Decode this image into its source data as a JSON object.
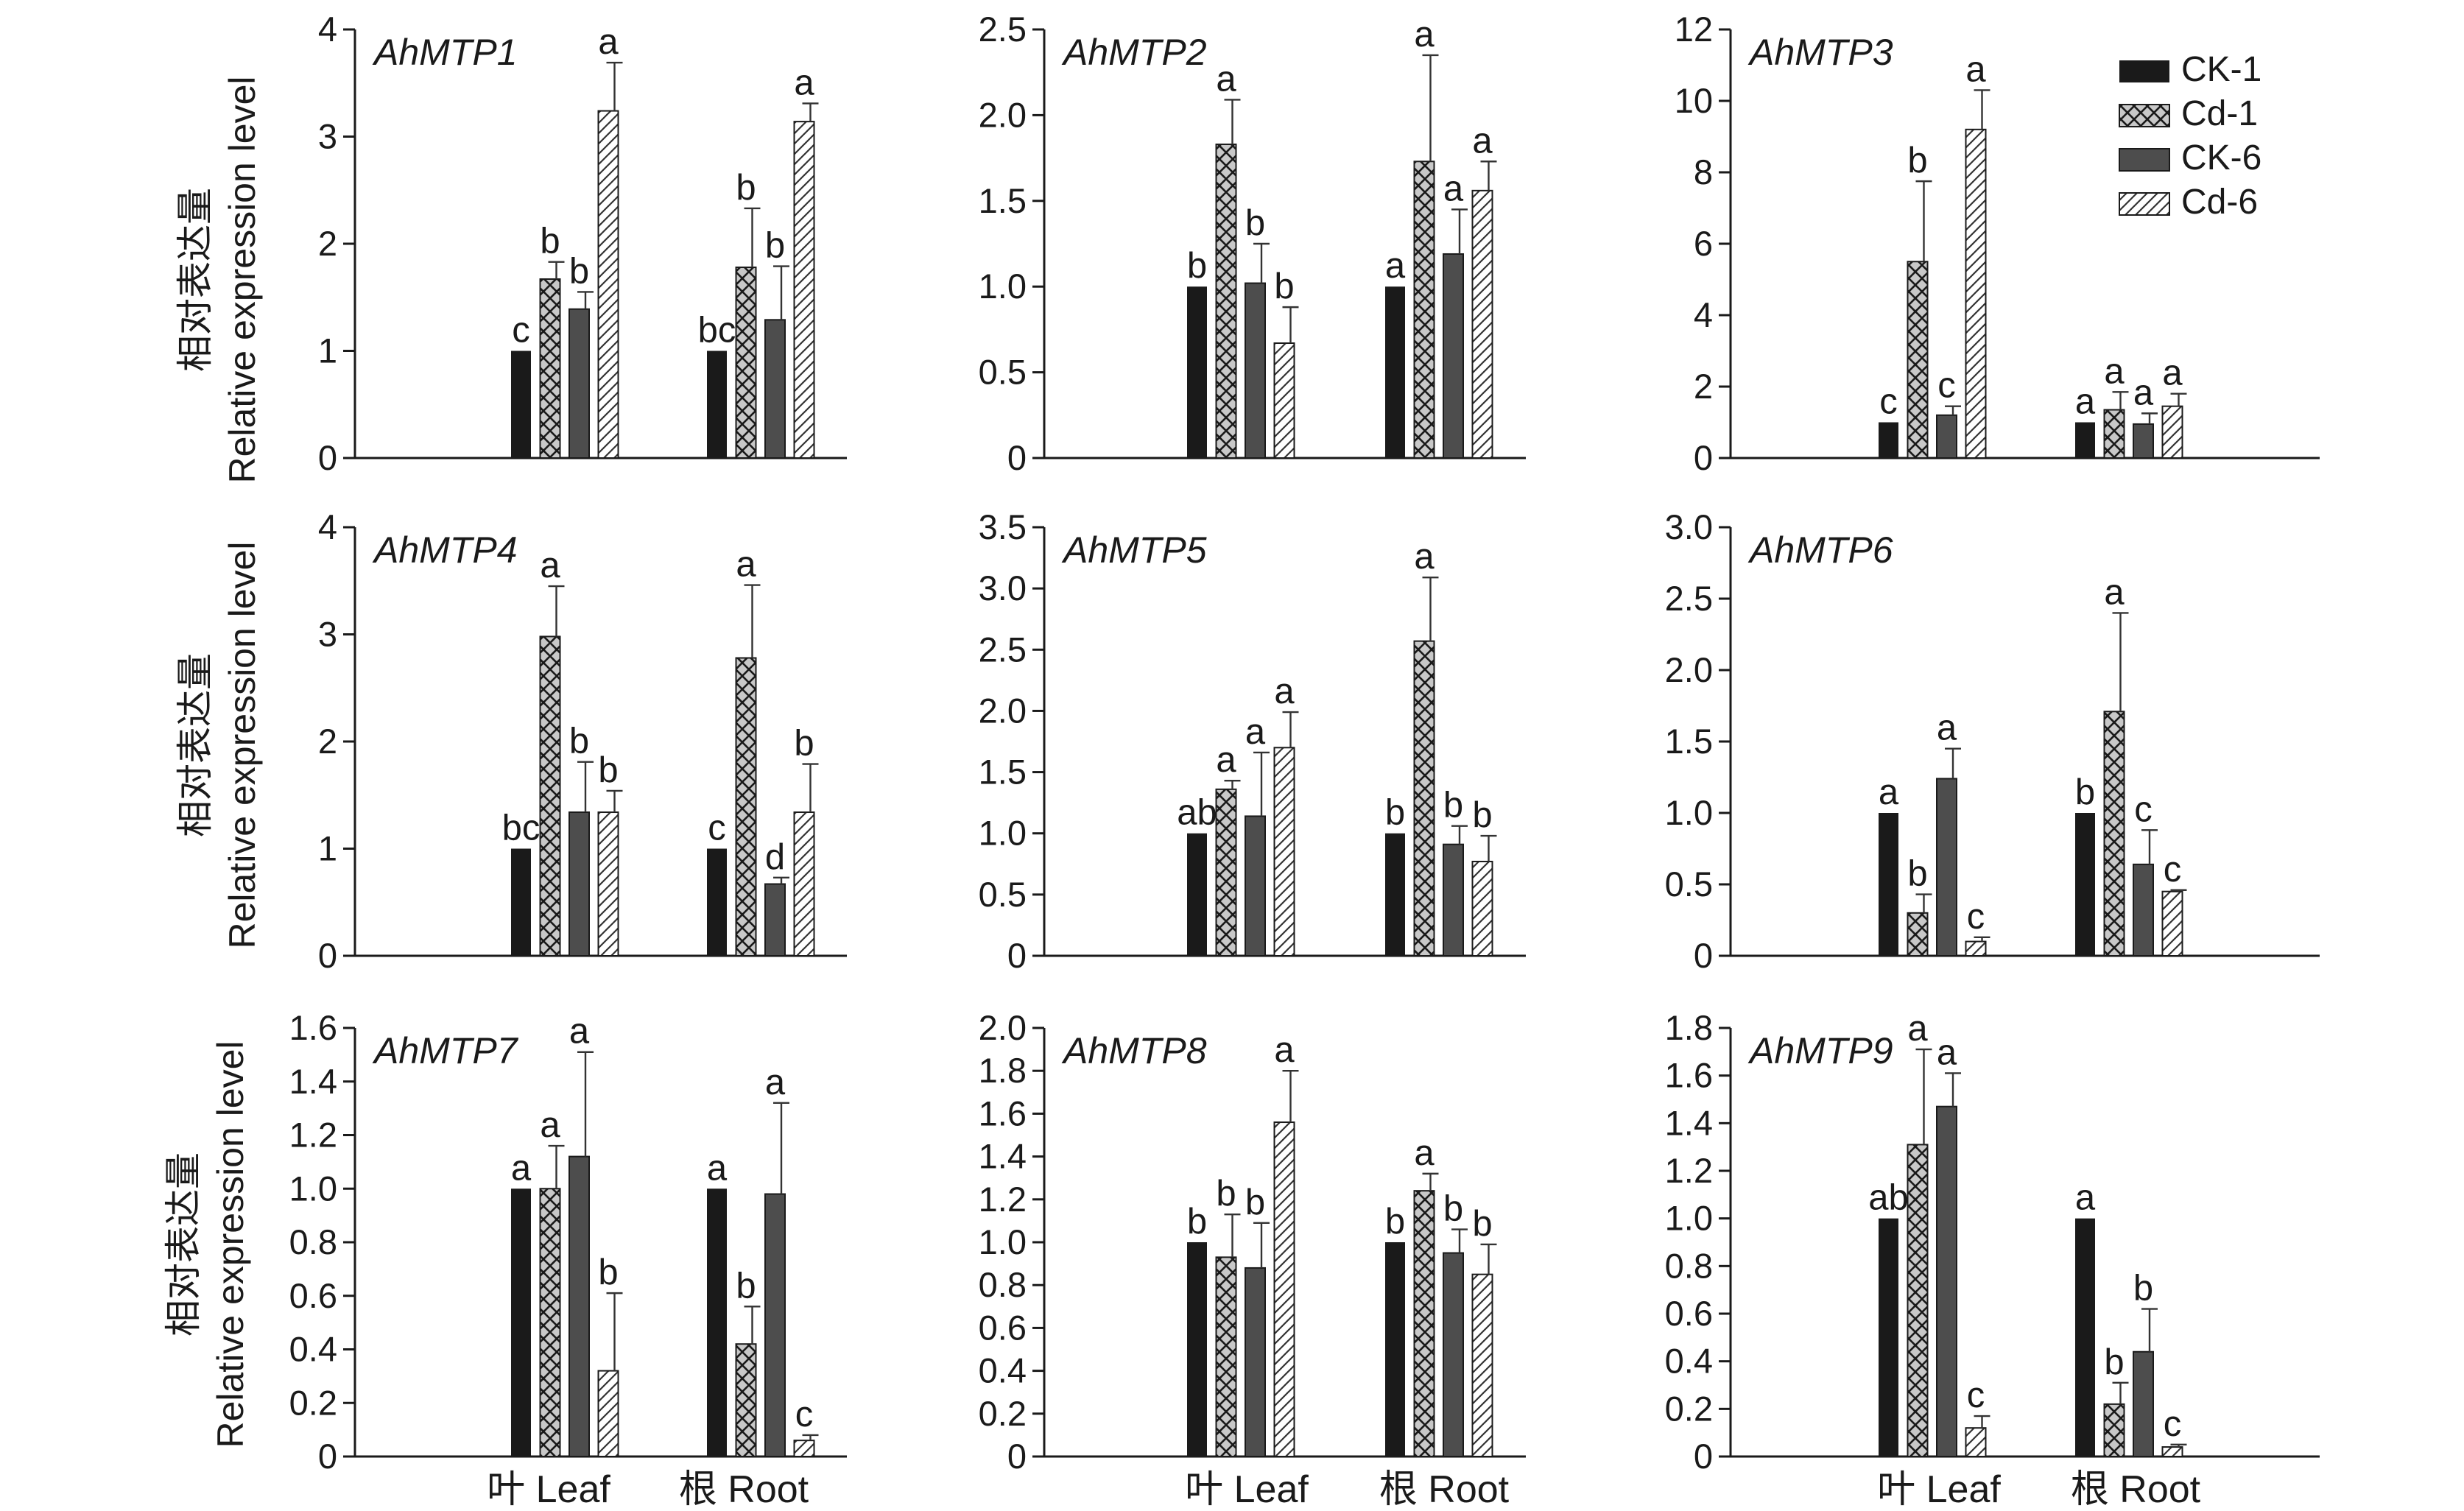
{
  "legend": [
    "CK-1",
    "Cd-1",
    "CK-6",
    "Cd-6"
  ],
  "ylabel_cn": "相对表达量",
  "ylabel_en": "Relative expression level",
  "xcategories": [
    "叶 Leaf",
    "根 Root"
  ],
  "chart_data": [
    {
      "type": "bar",
      "title": "AhMTP1",
      "categories": [
        "叶 Leaf",
        "根 Root"
      ],
      "ylim": [
        0,
        4
      ],
      "yticks": [
        "0",
        "1",
        "2",
        "3",
        "4"
      ],
      "series": [
        {
          "name": "CK-1",
          "values": [
            1.0,
            1.0
          ],
          "errors": [
            0,
            0
          ],
          "letters": [
            "c",
            "bc"
          ]
        },
        {
          "name": "Cd-1",
          "values": [
            1.67,
            1.78
          ],
          "errors": [
            0.16,
            0.55
          ],
          "letters": [
            "b",
            "b"
          ]
        },
        {
          "name": "CK-6",
          "values": [
            1.39,
            1.29
          ],
          "errors": [
            0.16,
            0.5
          ],
          "letters": [
            "b",
            "b"
          ]
        },
        {
          "name": "Cd-6",
          "values": [
            3.24,
            3.14
          ],
          "errors": [
            0.45,
            0.17
          ],
          "letters": [
            "a",
            "a"
          ]
        }
      ]
    },
    {
      "type": "bar",
      "title": "AhMTP2",
      "categories": [
        "叶 Leaf",
        "根 Root"
      ],
      "ylim": [
        0,
        2.5
      ],
      "yticks": [
        "0",
        "0.5",
        "1.0",
        "1.5",
        "2.0",
        "2.5"
      ],
      "series": [
        {
          "name": "CK-1",
          "values": [
            1.0,
            1.0
          ],
          "errors": [
            0,
            0
          ],
          "letters": [
            "b",
            "a"
          ]
        },
        {
          "name": "Cd-1",
          "values": [
            1.83,
            1.73
          ],
          "errors": [
            0.26,
            0.62
          ],
          "letters": [
            "a",
            "a"
          ]
        },
        {
          "name": "CK-6",
          "values": [
            1.02,
            1.19
          ],
          "errors": [
            0.23,
            0.26
          ],
          "letters": [
            "b",
            "a"
          ]
        },
        {
          "name": "Cd-6",
          "values": [
            0.67,
            1.56
          ],
          "errors": [
            0.21,
            0.17
          ],
          "letters": [
            "b",
            "a"
          ]
        }
      ]
    },
    {
      "type": "bar",
      "title": "AhMTP3",
      "categories": [
        "叶 Leaf",
        "根 Root"
      ],
      "ylim": [
        0,
        12
      ],
      "yticks": [
        "0",
        "2",
        "4",
        "6",
        "8",
        "10",
        "12"
      ],
      "series": [
        {
          "name": "CK-1",
          "values": [
            1.0,
            1.0
          ],
          "errors": [
            0,
            0
          ],
          "letters": [
            "c",
            "a"
          ]
        },
        {
          "name": "Cd-1",
          "values": [
            5.5,
            1.35
          ],
          "errors": [
            2.25,
            0.5
          ],
          "letters": [
            "b",
            "a"
          ]
        },
        {
          "name": "CK-6",
          "values": [
            1.2,
            0.95
          ],
          "errors": [
            0.25,
            0.3
          ],
          "letters": [
            "c",
            "a"
          ]
        },
        {
          "name": "Cd-6",
          "values": [
            9.2,
            1.45
          ],
          "errors": [
            1.1,
            0.35
          ],
          "letters": [
            "a",
            "a"
          ]
        }
      ]
    },
    {
      "type": "bar",
      "title": "AhMTP4",
      "categories": [
        "叶 Leaf",
        "根 Root"
      ],
      "ylim": [
        0,
        4
      ],
      "yticks": [
        "0",
        "1",
        "2",
        "3",
        "4"
      ],
      "series": [
        {
          "name": "CK-1",
          "values": [
            1.0,
            1.0
          ],
          "errors": [
            0,
            0
          ],
          "letters": [
            "bc",
            "c"
          ]
        },
        {
          "name": "Cd-1",
          "values": [
            2.98,
            2.78
          ],
          "errors": [
            0.47,
            0.68
          ],
          "letters": [
            "a",
            "a"
          ]
        },
        {
          "name": "CK-6",
          "values": [
            1.34,
            0.67
          ],
          "errors": [
            0.47,
            0.06
          ],
          "letters": [
            "b",
            "d"
          ]
        },
        {
          "name": "Cd-6",
          "values": [
            1.34,
            1.34
          ],
          "errors": [
            0.2,
            0.45
          ],
          "letters": [
            "b",
            "b"
          ]
        }
      ]
    },
    {
      "type": "bar",
      "title": "AhMTP5",
      "categories": [
        "叶 Leaf",
        "根 Root"
      ],
      "ylim": [
        0,
        3.5
      ],
      "yticks": [
        "0",
        "0.5",
        "1.0",
        "1.5",
        "2.0",
        "2.5",
        "3.0",
        "3.5"
      ],
      "series": [
        {
          "name": "CK-1",
          "values": [
            1.0,
            1.0
          ],
          "errors": [
            0,
            0
          ],
          "letters": [
            "ab",
            "b"
          ]
        },
        {
          "name": "Cd-1",
          "values": [
            1.36,
            2.57
          ],
          "errors": [
            0.07,
            0.52
          ],
          "letters": [
            "a",
            "a"
          ]
        },
        {
          "name": "CK-6",
          "values": [
            1.14,
            0.91
          ],
          "errors": [
            0.52,
            0.15
          ],
          "letters": [
            "a",
            "b"
          ]
        },
        {
          "name": "Cd-6",
          "values": [
            1.7,
            0.77
          ],
          "errors": [
            0.29,
            0.21
          ],
          "letters": [
            "a",
            "b"
          ]
        }
      ]
    },
    {
      "type": "bar",
      "title": "AhMTP6",
      "categories": [
        "叶 Leaf",
        "根 Root"
      ],
      "ylim": [
        0,
        3.0
      ],
      "yticks": [
        "0",
        "0.5",
        "1.0",
        "1.5",
        "2.0",
        "2.5",
        "3.0"
      ],
      "series": [
        {
          "name": "CK-1",
          "values": [
            1.0,
            1.0
          ],
          "errors": [
            0,
            0
          ],
          "letters": [
            "a",
            "b"
          ]
        },
        {
          "name": "Cd-1",
          "values": [
            0.3,
            1.71
          ],
          "errors": [
            0.13,
            0.69
          ],
          "letters": [
            "b",
            "a"
          ]
        },
        {
          "name": "CK-6",
          "values": [
            1.24,
            0.64
          ],
          "errors": [
            0.21,
            0.24
          ],
          "letters": [
            "a",
            "c"
          ]
        },
        {
          "name": "Cd-6",
          "values": [
            0.1,
            0.45
          ],
          "errors": [
            0.03,
            0.01
          ],
          "letters": [
            "c",
            "c"
          ]
        }
      ]
    },
    {
      "type": "bar",
      "title": "AhMTP7",
      "categories": [
        "叶 Leaf",
        "根 Root"
      ],
      "ylim": [
        0,
        1.6
      ],
      "yticks": [
        "0",
        "0.2",
        "0.4",
        "0.6",
        "0.8",
        "1.0",
        "1.2",
        "1.4",
        "1.6"
      ],
      "series": [
        {
          "name": "CK-1",
          "values": [
            1.0,
            1.0
          ],
          "errors": [
            0,
            0
          ],
          "letters": [
            "a",
            "a"
          ]
        },
        {
          "name": "Cd-1",
          "values": [
            1.0,
            0.42
          ],
          "errors": [
            0.16,
            0.14
          ],
          "letters": [
            "a",
            "b"
          ]
        },
        {
          "name": "CK-6",
          "values": [
            1.12,
            0.98
          ],
          "errors": [
            0.39,
            0.34
          ],
          "letters": [
            "a",
            "a"
          ]
        },
        {
          "name": "Cd-6",
          "values": [
            0.32,
            0.06
          ],
          "errors": [
            0.29,
            0.02
          ],
          "letters": [
            "b",
            "c"
          ]
        }
      ]
    },
    {
      "type": "bar",
      "title": "AhMTP8",
      "categories": [
        "叶 Leaf",
        "根 Root"
      ],
      "ylim": [
        0,
        2.0
      ],
      "yticks": [
        "0",
        "0.2",
        "0.4",
        "0.6",
        "0.8",
        "1.0",
        "1.2",
        "1.4",
        "1.6",
        "1.8",
        "2.0"
      ],
      "series": [
        {
          "name": "CK-1",
          "values": [
            1.0,
            1.0
          ],
          "errors": [
            0,
            0
          ],
          "letters": [
            "b",
            "b"
          ]
        },
        {
          "name": "Cd-1",
          "values": [
            0.93,
            1.24
          ],
          "errors": [
            0.2,
            0.08
          ],
          "letters": [
            "b",
            "a"
          ]
        },
        {
          "name": "CK-6",
          "values": [
            0.88,
            0.95
          ],
          "errors": [
            0.21,
            0.11
          ],
          "letters": [
            "b",
            "b"
          ]
        },
        {
          "name": "Cd-6",
          "values": [
            1.56,
            0.85
          ],
          "errors": [
            0.24,
            0.14
          ],
          "letters": [
            "a",
            "b"
          ]
        }
      ]
    },
    {
      "type": "bar",
      "title": "AhMTP9",
      "categories": [
        "叶 Leaf",
        "根 Root"
      ],
      "ylim": [
        0,
        1.8
      ],
      "yticks": [
        "0",
        "0.2",
        "0.4",
        "0.6",
        "0.8",
        "1.0",
        "1.2",
        "1.4",
        "1.6",
        "1.8"
      ],
      "series": [
        {
          "name": "CK-1",
          "values": [
            1.0,
            1.0
          ],
          "errors": [
            0,
            0
          ],
          "letters": [
            "ab",
            "a"
          ]
        },
        {
          "name": "Cd-1",
          "values": [
            1.31,
            0.22
          ],
          "errors": [
            0.4,
            0.09
          ],
          "letters": [
            "a",
            "b"
          ]
        },
        {
          "name": "CK-6",
          "values": [
            1.47,
            0.44
          ],
          "errors": [
            0.14,
            0.18
          ],
          "letters": [
            "a",
            "b"
          ]
        },
        {
          "name": "Cd-6",
          "values": [
            0.12,
            0.04
          ],
          "errors": [
            0.05,
            0.01
          ],
          "letters": [
            "c",
            "c"
          ]
        }
      ]
    }
  ]
}
